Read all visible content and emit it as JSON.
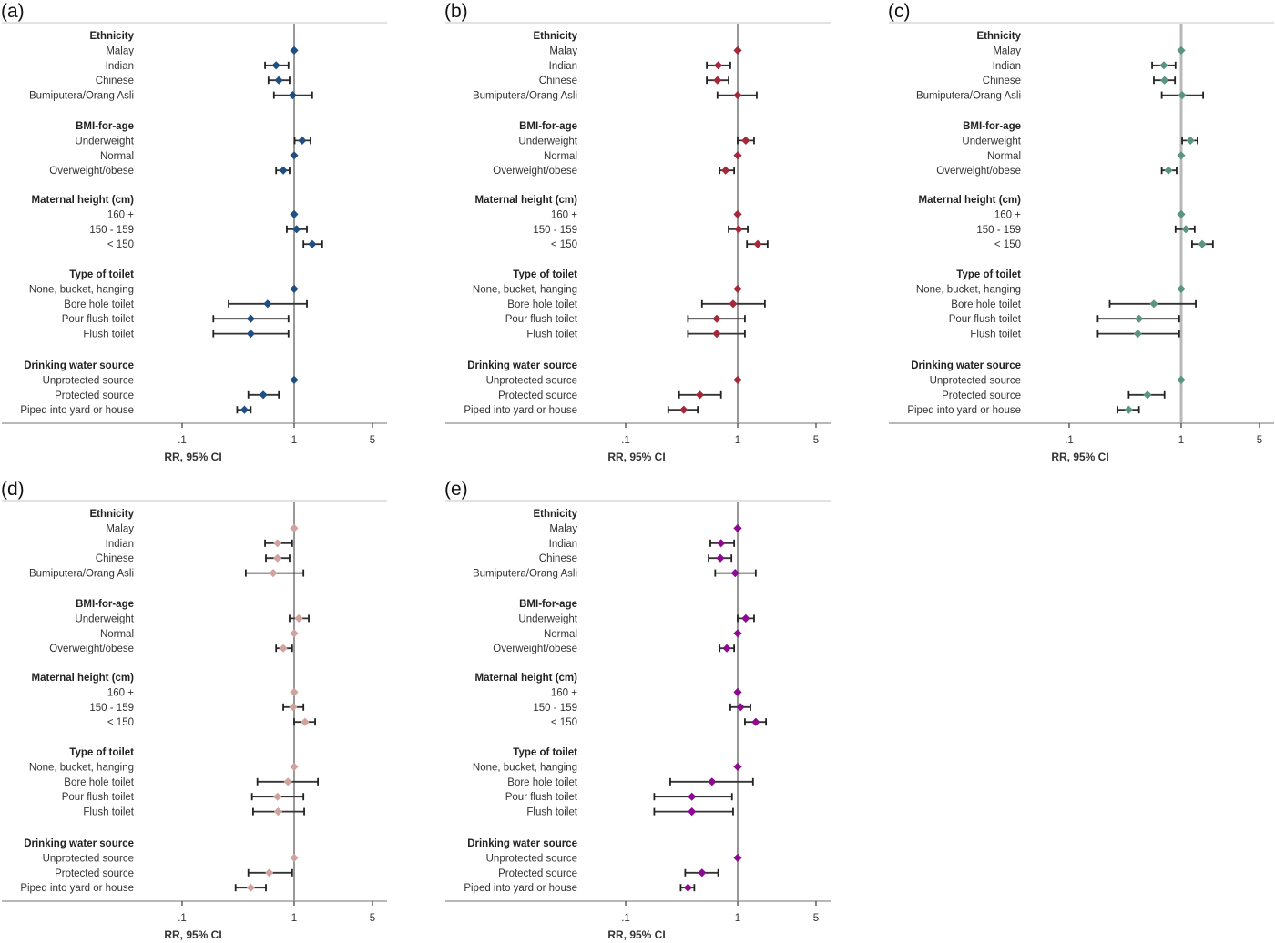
{
  "chart_data": {
    "type": "forest",
    "scale": "log",
    "xlabel": "RR, 95% CI",
    "xticks": [
      0.1,
      1,
      5
    ],
    "xtick_labels": [
      ".1",
      "1",
      "5"
    ],
    "xlim": [
      0.075,
      6.5
    ],
    "reference_line": 1,
    "groups": [
      {
        "label": "Ethnicity",
        "rows": [
          "Malay",
          "Indian",
          "Chinese",
          "Bumiputera/Orang Asli"
        ]
      },
      {
        "label": "BMI-for-age",
        "rows": [
          "Underweight",
          "Normal",
          "Overweight/obese"
        ]
      },
      {
        "label": "Maternal height (cm)",
        "rows": [
          "160 +",
          "150 - 159",
          "< 150"
        ]
      },
      {
        "label": "Type of toilet",
        "rows": [
          "None, bucket, hanging",
          "Bore hole toilet",
          "Pour flush toilet",
          "Flush toilet"
        ]
      },
      {
        "label": "Drinking water source",
        "rows": [
          "Unprotected source",
          "Protected source",
          "Piped into yard or house"
        ]
      }
    ],
    "panels": [
      {
        "label": "(a)",
        "color": "#1f4e82",
        "refline_color": "#7f7f7f",
        "estimates": [
          [
            [
              1,
              1,
              1
            ],
            [
              0.69,
              0.55,
              0.89
            ],
            [
              0.73,
              0.59,
              0.91
            ],
            [
              0.97,
              0.66,
              1.45
            ]
          ],
          [
            [
              1.18,
              1.01,
              1.4
            ],
            [
              1,
              1,
              1
            ],
            [
              0.8,
              0.69,
              0.91
            ]
          ],
          [
            [
              1,
              1,
              1
            ],
            [
              1.05,
              0.86,
              1.3
            ],
            [
              1.45,
              1.21,
              1.78
            ]
          ],
          [
            [
              1,
              1,
              1
            ],
            [
              0.58,
              0.26,
              1.3
            ],
            [
              0.41,
              0.19,
              0.89
            ],
            [
              0.41,
              0.19,
              0.89
            ]
          ],
          [
            [
              1,
              1,
              1
            ],
            [
              0.53,
              0.39,
              0.73
            ],
            [
              0.36,
              0.31,
              0.41
            ]
          ]
        ]
      },
      {
        "label": "(b)",
        "color": "#a3283a",
        "refline_color": "#7f7f7f",
        "estimates": [
          [
            [
              1,
              1,
              1
            ],
            [
              0.67,
              0.53,
              0.86
            ],
            [
              0.66,
              0.53,
              0.83
            ],
            [
              1.0,
              0.66,
              1.48
            ]
          ],
          [
            [
              1.18,
              1.0,
              1.4
            ],
            [
              1,
              1,
              1
            ],
            [
              0.78,
              0.69,
              0.93
            ]
          ],
          [
            [
              1,
              1,
              1
            ],
            [
              1.02,
              0.83,
              1.23
            ],
            [
              1.51,
              1.21,
              1.85
            ]
          ],
          [
            [
              1,
              1,
              1
            ],
            [
              0.91,
              0.48,
              1.75
            ],
            [
              0.65,
              0.36,
              1.16
            ],
            [
              0.65,
              0.36,
              1.16
            ]
          ],
          [
            [
              1,
              1,
              1
            ],
            [
              0.46,
              0.3,
              0.71
            ],
            [
              0.33,
              0.24,
              0.44
            ]
          ]
        ]
      },
      {
        "label": "(c)",
        "color": "#5a9484",
        "refline_color": "#b8b8b8",
        "estimates": [
          [
            [
              1,
              1,
              1
            ],
            [
              0.7,
              0.55,
              0.89
            ],
            [
              0.71,
              0.57,
              0.88
            ],
            [
              1.02,
              0.67,
              1.57
            ]
          ],
          [
            [
              1.21,
              1.02,
              1.4
            ],
            [
              1,
              1,
              1
            ],
            [
              0.77,
              0.67,
              0.91
            ]
          ],
          [
            [
              1,
              1,
              1
            ],
            [
              1.1,
              0.89,
              1.32
            ],
            [
              1.54,
              1.25,
              1.92
            ]
          ],
          [
            [
              1,
              1,
              1
            ],
            [
              0.57,
              0.23,
              1.35
            ],
            [
              0.42,
              0.18,
              0.96
            ],
            [
              0.41,
              0.18,
              0.96
            ]
          ],
          [
            [
              1,
              1,
              1
            ],
            [
              0.5,
              0.34,
              0.71
            ],
            [
              0.34,
              0.27,
              0.42
            ]
          ]
        ]
      },
      {
        "label": "(d)",
        "color": "#cfa39e",
        "refline_color": "#7f7f7f",
        "estimates": [
          [
            [
              1,
              1,
              1
            ],
            [
              0.71,
              0.55,
              0.96
            ],
            [
              0.71,
              0.56,
              0.91
            ],
            [
              0.65,
              0.37,
              1.21
            ]
          ],
          [
            [
              1.1,
              0.91,
              1.35
            ],
            [
              1,
              1,
              1
            ],
            [
              0.8,
              0.69,
              0.96
            ]
          ],
          [
            [
              1,
              1,
              1
            ],
            [
              0.98,
              0.8,
              1.21
            ],
            [
              1.25,
              1.0,
              1.54
            ]
          ],
          [
            [
              1,
              1,
              1
            ],
            [
              0.88,
              0.47,
              1.63
            ],
            [
              0.71,
              0.42,
              1.21
            ],
            [
              0.72,
              0.43,
              1.23
            ]
          ],
          [
            [
              1,
              1,
              1
            ],
            [
              0.6,
              0.39,
              0.96
            ],
            [
              0.41,
              0.3,
              0.56
            ]
          ]
        ]
      },
      {
        "label": "(e)",
        "color": "#8b0a8f",
        "refline_color": "#7f7f7f",
        "estimates": [
          [
            [
              1,
              1,
              1
            ],
            [
              0.71,
              0.57,
              0.93
            ],
            [
              0.7,
              0.55,
              0.88
            ],
            [
              0.95,
              0.63,
              1.45
            ]
          ],
          [
            [
              1.18,
              1.0,
              1.4
            ],
            [
              1,
              1,
              1
            ],
            [
              0.8,
              0.69,
              0.93
            ]
          ],
          [
            [
              1,
              1,
              1
            ],
            [
              1.06,
              0.86,
              1.3
            ],
            [
              1.45,
              1.16,
              1.79
            ]
          ],
          [
            [
              1,
              1,
              1
            ],
            [
              0.59,
              0.25,
              1.37
            ],
            [
              0.39,
              0.18,
              0.89
            ],
            [
              0.39,
              0.18,
              0.91
            ]
          ],
          [
            [
              1,
              1,
              1
            ],
            [
              0.48,
              0.34,
              0.67
            ],
            [
              0.36,
              0.31,
              0.41
            ]
          ]
        ]
      }
    ]
  }
}
